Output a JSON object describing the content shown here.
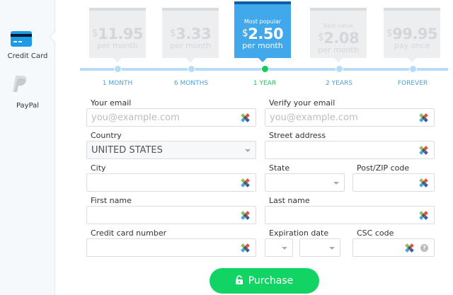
{
  "sidebar": {
    "items": [
      {
        "label": "Credit Card",
        "icon": "credit-card-icon",
        "active": true
      },
      {
        "label": "PayPal",
        "icon": "paypal-icon",
        "active": false
      }
    ]
  },
  "plans": [
    {
      "tag": "",
      "currency": "$",
      "price": "11.95",
      "period": "per month",
      "label": "1 MONTH",
      "selected": false
    },
    {
      "tag": "",
      "currency": "$",
      "price": "3.33",
      "period": "per month",
      "label": "6 MONTHS",
      "selected": false
    },
    {
      "tag": "Most popular",
      "currency": "$",
      "price": "2.50",
      "period": "per month",
      "label": "1 YEAR",
      "selected": true
    },
    {
      "tag": "Best value",
      "currency": "$",
      "price": "2.08",
      "period": "per month",
      "label": "2 YEARS",
      "selected": false
    },
    {
      "tag": "",
      "currency": "$",
      "price": "99.95",
      "period": "pay once",
      "label": "FOREVER",
      "selected": false
    }
  ],
  "form": {
    "email": {
      "label": "Your email",
      "placeholder": "you@example.com"
    },
    "verify_email": {
      "label": "Verify your email",
      "placeholder": "you@example.com"
    },
    "country": {
      "label": "Country",
      "value": "UNITED STATES"
    },
    "street": {
      "label": "Street address"
    },
    "city": {
      "label": "City"
    },
    "state": {
      "label": "State"
    },
    "zip": {
      "label": "Post/ZIP code"
    },
    "first_name": {
      "label": "First name"
    },
    "last_name": {
      "label": "Last name"
    },
    "card_number": {
      "label": "Credit card number"
    },
    "expiration": {
      "label": "Expiration date"
    },
    "csc": {
      "label": "CSC code",
      "help": "?"
    }
  },
  "purchase_label": "Purchase",
  "colors": {
    "accent": "#42a8ec",
    "green": "#12d465"
  }
}
